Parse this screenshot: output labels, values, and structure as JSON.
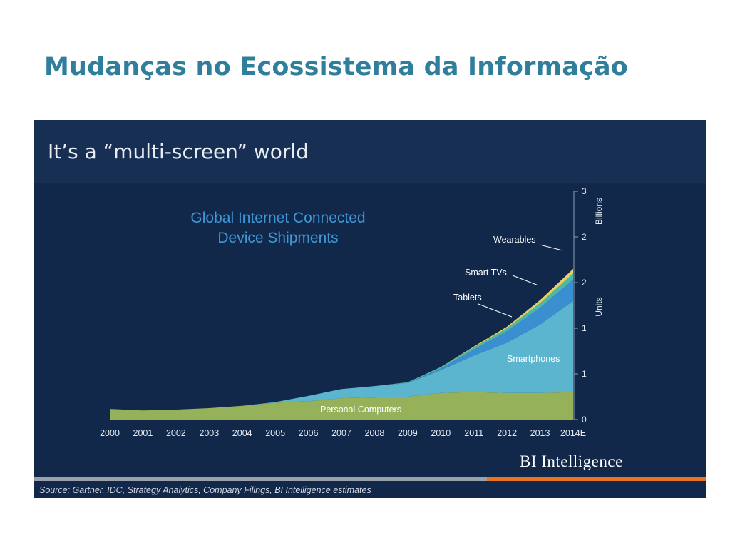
{
  "slide": {
    "title": "Mudanças no Ecossistema da Informação"
  },
  "panel": {
    "heading": "It’s a “multi-screen” world",
    "brand": "BI Intelligence",
    "source": "Source: Gartner, IDC, Strategy Analytics, Company Filings, BI Intelligence estimates"
  },
  "chart_data": {
    "type": "area",
    "stacked": true,
    "title": "Global Internet Connected Device Shipments",
    "title_lines": [
      "Global Internet Connected",
      "Device Shipments"
    ],
    "ylabel_lines": [
      "Billions",
      "Units"
    ],
    "x": [
      "2000",
      "2001",
      "2002",
      "2003",
      "2004",
      "2005",
      "2006",
      "2007",
      "2008",
      "2009",
      "2010",
      "2011",
      "2012",
      "2013",
      "2014E"
    ],
    "y_ticks": [
      "0",
      "1",
      "1",
      "2",
      "2",
      "3"
    ],
    "ylim": [
      0,
      3
    ],
    "grid": false,
    "series": [
      {
        "name": "Personal Computers",
        "color": "#95b25a",
        "values": [
          0.14,
          0.12,
          0.13,
          0.15,
          0.18,
          0.22,
          0.24,
          0.28,
          0.29,
          0.3,
          0.35,
          0.36,
          0.35,
          0.35,
          0.36
        ]
      },
      {
        "name": "Smartphones",
        "color": "#5bb5cf",
        "values": [
          0,
          0,
          0,
          0,
          0,
          0.01,
          0.07,
          0.12,
          0.15,
          0.18,
          0.3,
          0.48,
          0.66,
          0.9,
          1.2
        ]
      },
      {
        "name": "Tablets",
        "color": "#3a8fd0",
        "values": [
          0,
          0,
          0,
          0,
          0,
          0,
          0,
          0,
          0,
          0,
          0.02,
          0.08,
          0.15,
          0.22,
          0.28
        ]
      },
      {
        "name": "Smart TVs",
        "color": "#4fb7a6",
        "values": [
          0,
          0,
          0,
          0,
          0,
          0,
          0,
          0,
          0,
          0.01,
          0.02,
          0.03,
          0.04,
          0.06,
          0.08
        ]
      },
      {
        "name": "Wearables",
        "color": "#e6cf63",
        "values": [
          0,
          0,
          0,
          0,
          0,
          0,
          0,
          0,
          0,
          0,
          0,
          0.01,
          0.02,
          0.04,
          0.06
        ]
      }
    ],
    "labels": {
      "personal_computers": "Personal Computers",
      "smartphones": "Smartphones",
      "tablets": "Tablets",
      "smart_tvs": "Smart TVs",
      "wearables": "Wearables"
    }
  }
}
